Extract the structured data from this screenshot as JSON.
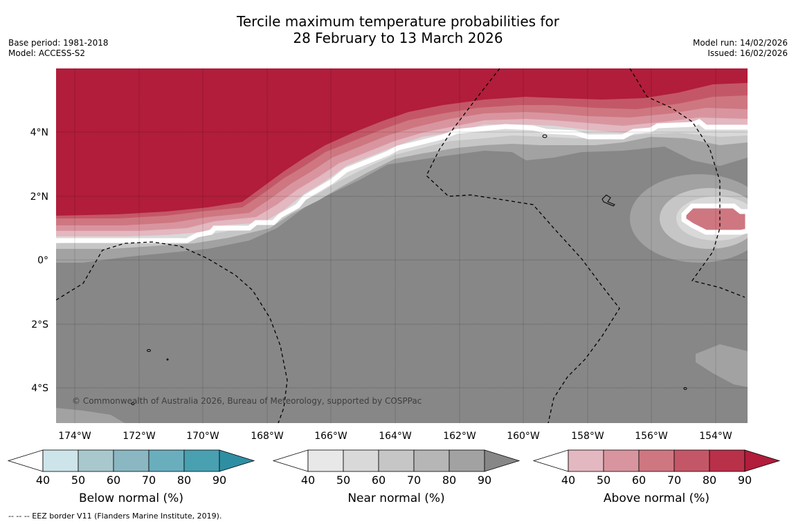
{
  "title": {
    "line1": "Tercile maximum temperature probabilities for",
    "line2": "28 February to 13 March 2026"
  },
  "meta_left": {
    "base_period": "Base period: 1981-2018",
    "model": "Model: ACCESS-S2"
  },
  "meta_right": {
    "model_run": "Model run: 14/02/2026",
    "issued": "Issued: 16/02/2026"
  },
  "map": {
    "lon_labels": [
      "174°W",
      "172°W",
      "170°W",
      "168°W",
      "166°W",
      "164°W",
      "162°W",
      "160°W",
      "158°W",
      "156°W",
      "154°W"
    ],
    "lat_labels": [
      "4°N",
      "2°N",
      "0°",
      "2°S",
      "4°S"
    ],
    "copyright": "© Commonwealth of Australia 2026, Bureau of Meteorology, supported by COSPPac",
    "colors": {
      "ocean_near_90": "#878787",
      "above_90": "#b11d3b"
    }
  },
  "colorbars": [
    {
      "label": "Below normal (%)",
      "ticks": [
        "40",
        "50",
        "60",
        "70",
        "80",
        "90"
      ],
      "colors": [
        "#ffffff",
        "#cde4ea",
        "#a9c8cd",
        "#8ab7c2",
        "#6aaebd",
        "#48a0b1",
        "#2e8fa2"
      ]
    },
    {
      "label": "Near normal (%)",
      "ticks": [
        "40",
        "50",
        "60",
        "70",
        "80",
        "90"
      ],
      "colors": [
        "#ffffff",
        "#e8e8e8",
        "#d9d9d9",
        "#c6c6c6",
        "#b6b6b6",
        "#a2a2a2",
        "#878787"
      ]
    },
    {
      "label": "Above normal (%)",
      "ticks": [
        "40",
        "50",
        "60",
        "70",
        "80",
        "90"
      ],
      "colors": [
        "#ffffff",
        "#e3b8c0",
        "#d9959f",
        "#ce7781",
        "#c45767",
        "#b93049",
        "#b11d3b"
      ]
    }
  ],
  "footnote": "--  --  -- EEZ border V11 (Flanders Marine Institute, 2019)."
}
